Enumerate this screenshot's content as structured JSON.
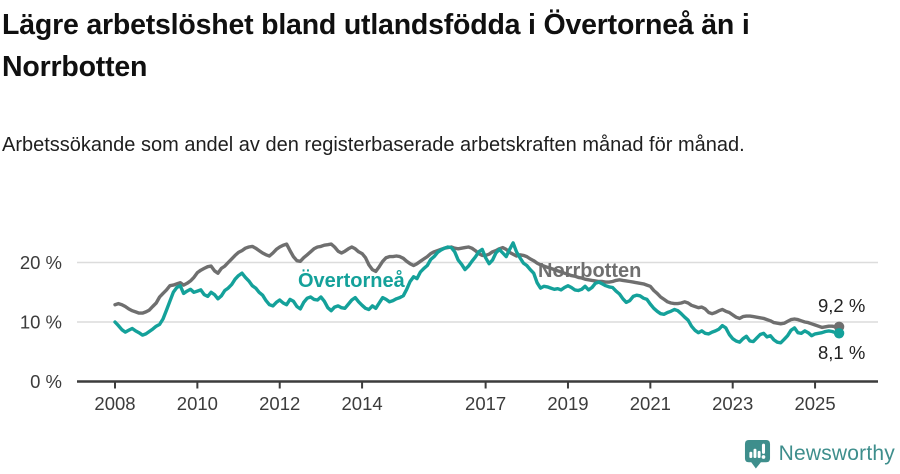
{
  "header": {
    "title": "Lägre arbetslöshet bland utlandsfödda i Övertorneå än i Norrbotten",
    "subtitle": "Arbetssökande som andel av den registerbaserade arbetskraften månad för månad."
  },
  "footer": {
    "brand": "Newsworthy",
    "brand_color": "#3e8e8c",
    "logo_icon": "bar-chart-speech-badge-icon"
  },
  "chart_data": {
    "type": "line",
    "unit": "%",
    "freq": "monthly",
    "x_start": "2008-01",
    "x_end": "2025-08",
    "x_ticks": [
      2008,
      2010,
      2012,
      2014,
      2017,
      2019,
      2021,
      2023,
      2025
    ],
    "y_ticks": [
      {
        "value": 0,
        "label": "0 %"
      },
      {
        "value": 10,
        "label": "10 %"
      },
      {
        "value": 20,
        "label": "20 %"
      }
    ],
    "ylim": [
      0,
      25
    ],
    "grid": "horizontal",
    "grid_color": "#dcdcdc",
    "axis_color": "#3c3c3c",
    "series": [
      {
        "id": "norrbotten",
        "name": "Norrbotten",
        "color": "#6f6f6f",
        "end_label": "9,2 %",
        "last_value": 9.2,
        "values": [
          12.9,
          13.1,
          12.9,
          12.6,
          12.2,
          11.9,
          11.7,
          11.5,
          11.5,
          11.7,
          12.0,
          12.6,
          13.2,
          14.2,
          14.8,
          15.4,
          16.1,
          16.2,
          16.4,
          16.6,
          16.2,
          16.5,
          16.9,
          17.5,
          18.3,
          18.7,
          19.0,
          19.3,
          19.4,
          18.6,
          18.2,
          19.0,
          19.4,
          20.0,
          20.6,
          21.2,
          21.7,
          22.0,
          22.4,
          22.6,
          22.7,
          22.4,
          22.0,
          21.6,
          21.3,
          21.1,
          21.6,
          22.2,
          22.6,
          22.9,
          23.1,
          22.0,
          21.0,
          20.3,
          20.2,
          20.8,
          21.3,
          21.8,
          22.3,
          22.6,
          22.7,
          22.9,
          23.0,
          23.1,
          22.6,
          21.9,
          21.6,
          21.9,
          22.3,
          22.6,
          22.3,
          21.8,
          21.5,
          20.8,
          19.6,
          18.8,
          18.5,
          19.3,
          20.2,
          20.8,
          21.0,
          21.0,
          21.1,
          21.0,
          20.7,
          20.2,
          19.8,
          19.5,
          19.8,
          20.2,
          20.6,
          21.0,
          21.5,
          21.8,
          22.0,
          22.2,
          22.4,
          22.5,
          22.6,
          22.4,
          22.3,
          22.4,
          22.5,
          22.6,
          22.4,
          22.0,
          21.5,
          21.2,
          21.2,
          21.4,
          21.8,
          22.0,
          22.3,
          22.5,
          22.2,
          21.7,
          21.4,
          21.1,
          21.3,
          21.2,
          21.0,
          20.6,
          20.3,
          19.9,
          19.6,
          19.4,
          19.2,
          19.0,
          18.8,
          18.6,
          18.4,
          18.2,
          18.0,
          17.8,
          17.7,
          17.5,
          17.4,
          17.2,
          17.1,
          17.0,
          16.9,
          16.8,
          16.8,
          16.7,
          16.7,
          16.8,
          17.0,
          17.1,
          17.0,
          16.9,
          16.8,
          16.7,
          16.6,
          16.5,
          16.4,
          16.2,
          16.0,
          15.3,
          14.8,
          14.2,
          13.8,
          13.4,
          13.2,
          13.1,
          13.1,
          13.2,
          13.4,
          13.2,
          12.8,
          12.6,
          12.4,
          12.5,
          12.2,
          11.6,
          11.4,
          11.6,
          11.9,
          12.1,
          11.8,
          11.6,
          11.2,
          10.8,
          10.6,
          10.9,
          11.0,
          11.0,
          10.9,
          10.8,
          10.7,
          10.6,
          10.4,
          10.2,
          9.9,
          9.8,
          9.7,
          9.8,
          10.1,
          10.4,
          10.5,
          10.4,
          10.2,
          10.0,
          9.9,
          9.7,
          9.5,
          9.3,
          9.1,
          9.2,
          9.3,
          9.3,
          9.2,
          9.2
        ]
      },
      {
        "id": "overtornea",
        "name": "Övertorneå",
        "color": "#14a19a",
        "end_label": "8,1 %",
        "last_value": 8.1,
        "values": [
          10.0,
          9.4,
          8.7,
          8.3,
          8.6,
          8.9,
          8.5,
          8.2,
          7.8,
          8.0,
          8.4,
          8.8,
          9.3,
          9.6,
          10.5,
          12.0,
          13.5,
          15.0,
          15.8,
          16.1,
          14.8,
          15.2,
          15.5,
          15.0,
          15.2,
          15.4,
          14.6,
          14.3,
          15.0,
          14.6,
          13.9,
          14.4,
          15.3,
          15.7,
          16.3,
          17.2,
          17.8,
          18.2,
          17.5,
          16.9,
          16.1,
          15.7,
          15.0,
          14.5,
          13.6,
          12.9,
          12.7,
          13.3,
          13.7,
          13.2,
          12.9,
          13.8,
          13.5,
          12.6,
          12.2,
          13.3,
          14.0,
          14.2,
          13.8,
          13.7,
          14.2,
          13.5,
          12.4,
          11.9,
          12.5,
          12.7,
          12.4,
          12.3,
          13.0,
          13.7,
          14.1,
          13.4,
          12.8,
          12.3,
          12.1,
          12.7,
          12.3,
          13.2,
          14.1,
          13.8,
          13.4,
          13.6,
          13.9,
          14.1,
          14.4,
          15.5,
          16.8,
          17.6,
          17.3,
          18.4,
          19.0,
          19.5,
          20.5,
          21.0,
          21.7,
          22.1,
          22.4,
          22.6,
          22.5,
          21.8,
          20.4,
          19.7,
          18.8,
          19.4,
          20.2,
          20.9,
          21.8,
          22.2,
          20.8,
          19.8,
          20.4,
          21.6,
          22.2,
          21.6,
          21.0,
          22.2,
          23.3,
          21.8,
          20.8,
          19.9,
          19.5,
          18.8,
          18.2,
          16.6,
          15.7,
          16.0,
          15.9,
          15.7,
          15.5,
          15.6,
          15.4,
          15.8,
          16.1,
          15.8,
          15.4,
          15.3,
          15.5,
          16.0,
          15.4,
          15.8,
          16.5,
          16.7,
          16.4,
          16.1,
          15.9,
          15.8,
          15.2,
          14.7,
          13.9,
          13.3,
          13.6,
          14.3,
          14.5,
          14.4,
          14.0,
          13.8,
          13.0,
          12.3,
          11.8,
          11.4,
          11.3,
          11.6,
          11.8,
          12.1,
          11.9,
          11.4,
          10.8,
          10.3,
          9.3,
          8.6,
          8.2,
          8.5,
          8.1,
          8.0,
          8.3,
          8.5,
          8.8,
          9.4,
          9.0,
          7.9,
          7.2,
          6.8,
          6.6,
          7.2,
          7.6,
          6.8,
          6.7,
          7.3,
          7.9,
          8.1,
          7.5,
          7.7,
          7.0,
          6.6,
          6.5,
          7.1,
          7.7,
          8.6,
          9.0,
          8.2,
          8.1,
          8.5,
          8.2,
          7.7,
          8.0,
          8.1,
          8.2,
          8.4,
          8.5,
          8.4,
          8.2,
          8.1
        ]
      }
    ]
  }
}
